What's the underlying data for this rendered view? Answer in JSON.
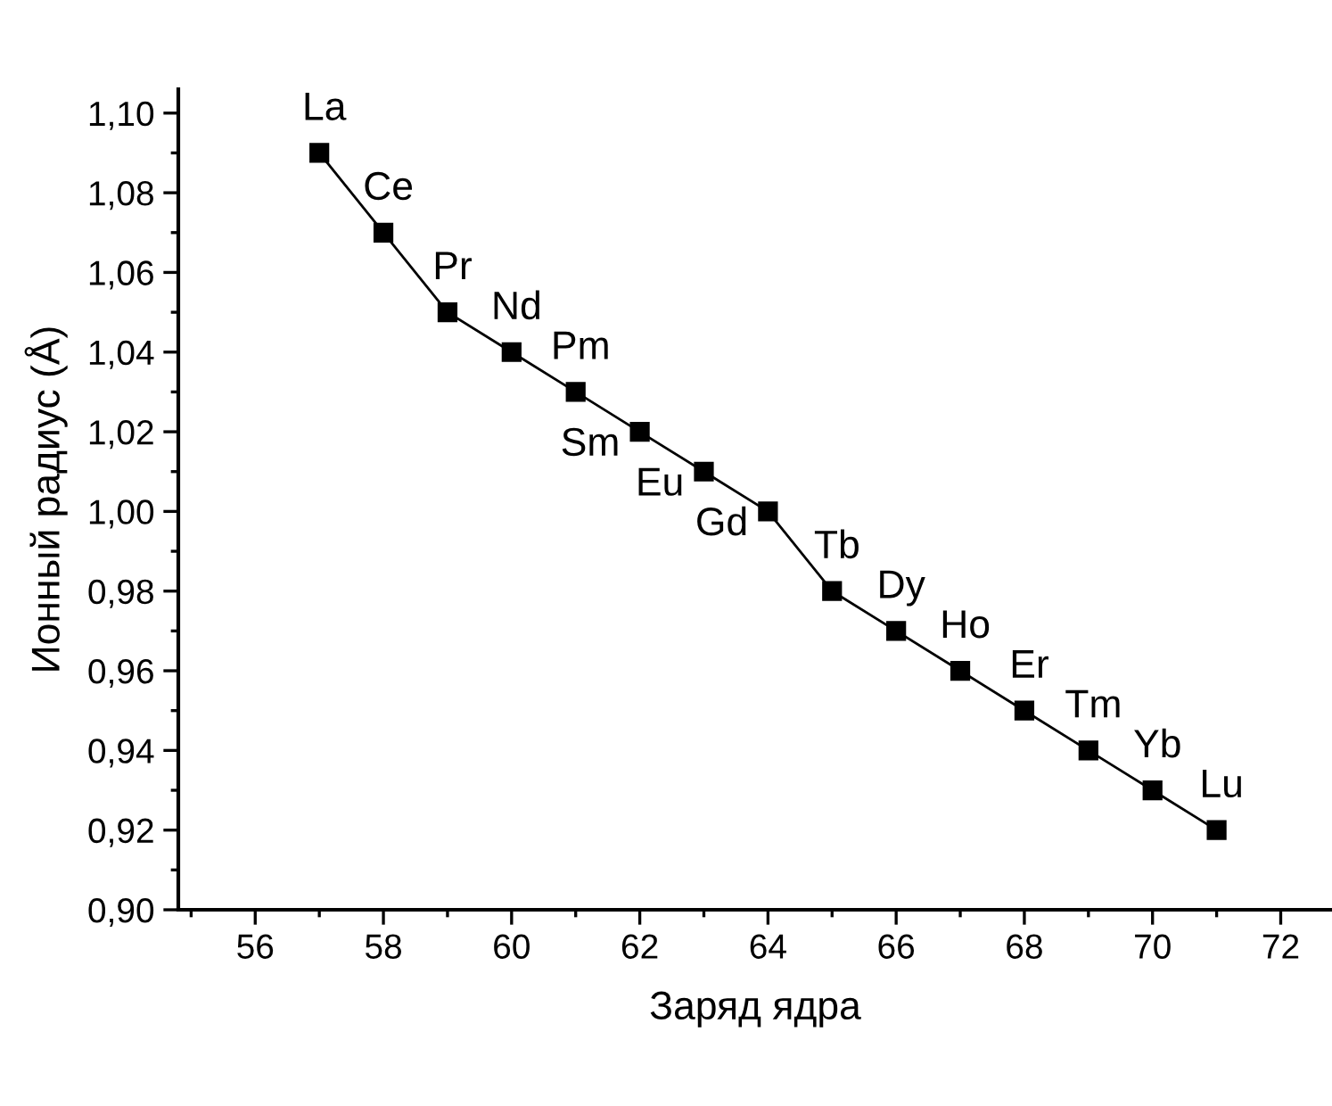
{
  "chart_data": {
    "type": "line",
    "xlabel": "Заряд ядра",
    "ylabel": "Ионный радиус (Å)",
    "x": [
      57,
      58,
      59,
      60,
      61,
      62,
      63,
      64,
      65,
      66,
      67,
      68,
      69,
      70,
      71
    ],
    "series": [
      {
        "color": "#000000",
        "values": [
          1.09,
          1.07,
          1.05,
          1.04,
          1.03,
          1.02,
          1.01,
          1.0,
          0.98,
          0.97,
          0.96,
          0.95,
          0.94,
          0.93,
          0.92
        ]
      }
    ],
    "marker": "square",
    "line_style": "solid",
    "grid": false,
    "legend": false,
    "xlim": [
      54.8,
      72.8
    ],
    "xticks": [
      56,
      58,
      60,
      62,
      64,
      66,
      68,
      70,
      72
    ],
    "ylim": [
      0.9,
      1.106
    ],
    "yticks": [
      {
        "value": 0.9,
        "label": "0,90"
      },
      {
        "value": 0.92,
        "label": "0,92"
      },
      {
        "value": 0.94,
        "label": "0,94"
      },
      {
        "value": 0.96,
        "label": "0,96"
      },
      {
        "value": 0.98,
        "label": "0,98"
      },
      {
        "value": 1.0,
        "label": "1,00"
      },
      {
        "value": 1.02,
        "label": "1,02"
      },
      {
        "value": 1.04,
        "label": "1,04"
      },
      {
        "value": 1.06,
        "label": "1,06"
      },
      {
        "value": 1.08,
        "label": "1,08"
      },
      {
        "value": 1.1,
        "label": "1,10"
      }
    ],
    "annotations": [
      {
        "text": "La",
        "x": 57,
        "y": 1.09
      },
      {
        "text": "Ce",
        "x": 58,
        "y": 1.07
      },
      {
        "text": "Pr",
        "x": 59,
        "y": 1.05
      },
      {
        "text": "Nd",
        "x": 60,
        "y": 1.04
      },
      {
        "text": "Pm",
        "x": 61,
        "y": 1.03
      },
      {
        "text": "Sm",
        "x": 62,
        "y": 1.02
      },
      {
        "text": "Eu",
        "x": 63,
        "y": 1.01
      },
      {
        "text": "Gd",
        "x": 64,
        "y": 1.0
      },
      {
        "text": "Tb",
        "x": 65,
        "y": 0.98
      },
      {
        "text": "Dy",
        "x": 66,
        "y": 0.97
      },
      {
        "text": "Ho",
        "x": 67,
        "y": 0.96
      },
      {
        "text": "Er",
        "x": 68,
        "y": 0.95
      },
      {
        "text": "Tm",
        "x": 69,
        "y": 0.94
      },
      {
        "text": "Yb",
        "x": 70,
        "y": 0.93
      },
      {
        "text": "Lu",
        "x": 71,
        "y": 0.92
      }
    ]
  }
}
